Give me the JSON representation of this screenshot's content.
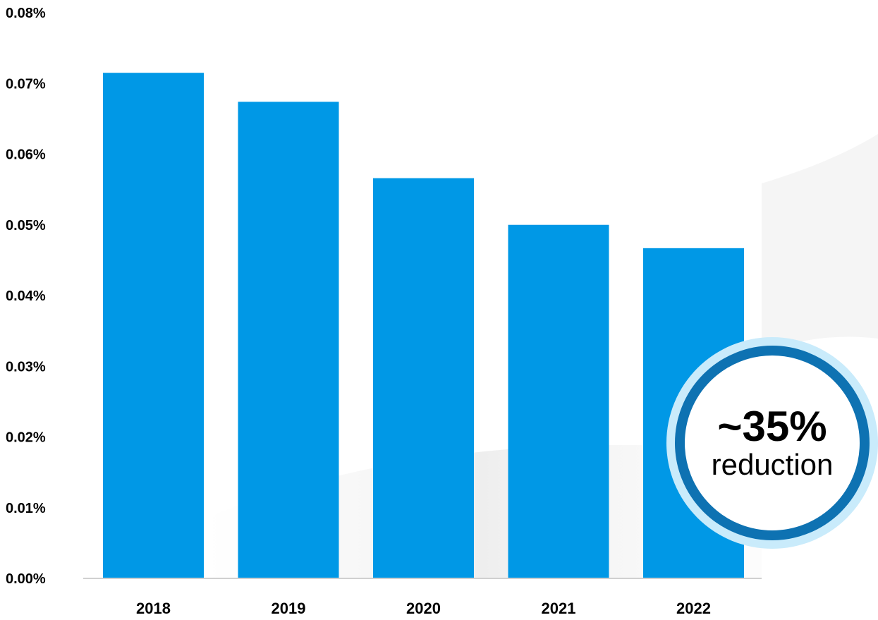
{
  "chart_data": {
    "type": "bar",
    "categories": [
      "2018",
      "2019",
      "2020",
      "2021",
      "2022"
    ],
    "values": [
      0.0715,
      0.0674,
      0.0566,
      0.05,
      0.0467
    ],
    "ylim": [
      0,
      0.08
    ],
    "yticks": [
      "0.00%",
      "0.01%",
      "0.02%",
      "0.03%",
      "0.04%",
      "0.05%",
      "0.06%",
      "0.07%",
      "0.08%"
    ],
    "title": "",
    "xlabel": "",
    "ylabel": "",
    "grid": false,
    "bar_color": "#0098e6",
    "annotation": {
      "value": "~35%",
      "caption": "reduction",
      "ring_color": "#0e72b2",
      "halo_color": "#c9ebfb"
    }
  }
}
